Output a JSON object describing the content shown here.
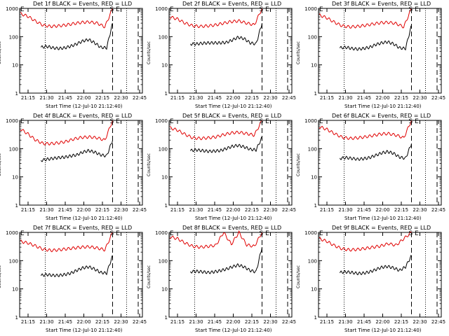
{
  "axis": {
    "ylabel": "Counts/sec",
    "xlabel": "Start Time (12-Jul-10 21:12:40)",
    "ytick_labels": [
      "1000",
      "100",
      "10",
      "1"
    ],
    "xtick_labels": [
      "21:15",
      "21:30",
      "21:45",
      "22:00",
      "22:15",
      "22:30",
      "22:45"
    ],
    "ylim": [
      1,
      1000
    ],
    "yscale": "log"
  },
  "markers": {
    "start": "E",
    "end": "S E"
  },
  "colors": {
    "events": "#000000",
    "lld": "#e00000"
  },
  "chart_data": [
    {
      "title": "Det 1f BLACK = Events, RED = LLD",
      "type": "line",
      "series": [
        {
          "name": "Events",
          "values": [
            42,
            45,
            40,
            38,
            40,
            46,
            55,
            70,
            78,
            60,
            42,
            40,
            300
          ]
        },
        {
          "name": "LLD",
          "values": [
            650,
            520,
            350,
            250,
            230,
            240,
            260,
            290,
            320,
            330,
            300,
            220,
            1000
          ]
        }
      ]
    },
    {
      "title": "Det 2f BLACK = Events, RED = LLD",
      "type": "line",
      "series": [
        {
          "name": "Events",
          "values": [
            55,
            55,
            58,
            60,
            60,
            60,
            62,
            75,
            95,
            85,
            60,
            55,
            300
          ]
        },
        {
          "name": "LLD",
          "values": [
            500,
            420,
            300,
            240,
            230,
            240,
            260,
            300,
            340,
            360,
            300,
            260,
            1000
          ]
        }
      ]
    },
    {
      "title": "Det 3f BLACK = Events, RED = LLD",
      "type": "line",
      "series": [
        {
          "name": "Events",
          "values": [
            40,
            42,
            38,
            36,
            38,
            42,
            52,
            60,
            65,
            55,
            40,
            38,
            250
          ]
        },
        {
          "name": "LLD",
          "values": [
            580,
            460,
            320,
            240,
            220,
            230,
            250,
            280,
            310,
            320,
            290,
            220,
            1000
          ]
        }
      ]
    },
    {
      "title": "Det 4f BLACK = Events, RED = LLD",
      "type": "line",
      "series": [
        {
          "name": "Events",
          "values": [
            38,
            42,
            45,
            48,
            50,
            55,
            60,
            75,
            85,
            75,
            60,
            55,
            200
          ]
        },
        {
          "name": "LLD",
          "values": [
            500,
            330,
            200,
            150,
            150,
            160,
            180,
            220,
            250,
            260,
            240,
            200,
            1000
          ]
        }
      ]
    },
    {
      "title": "Det 5f BLACK = Events, RED = LLD",
      "type": "line",
      "series": [
        {
          "name": "Events",
          "values": [
            85,
            90,
            85,
            80,
            82,
            85,
            100,
            120,
            130,
            115,
            95,
            90,
            250
          ]
        },
        {
          "name": "LLD",
          "values": [
            550,
            450,
            320,
            240,
            230,
            240,
            260,
            310,
            360,
            380,
            340,
            300,
            1000
          ]
        }
      ]
    },
    {
      "title": "Det 6f BLACK = Events, RED = LLD",
      "type": "line",
      "series": [
        {
          "name": "Events",
          "values": [
            45,
            48,
            45,
            42,
            44,
            48,
            58,
            70,
            78,
            68,
            50,
            45,
            150
          ]
        },
        {
          "name": "LLD",
          "values": [
            600,
            480,
            340,
            250,
            230,
            240,
            260,
            290,
            330,
            340,
            300,
            240,
            1000
          ]
        }
      ]
    },
    {
      "title": "Det 7f BLACK = Events, RED = LLD",
      "type": "line",
      "series": [
        {
          "name": "Events",
          "values": [
            30,
            32,
            30,
            30,
            32,
            36,
            45,
            55,
            60,
            50,
            38,
            36,
            150
          ]
        },
        {
          "name": "LLD",
          "values": [
            480,
            420,
            330,
            250,
            230,
            240,
            260,
            280,
            300,
            310,
            280,
            240,
            1000
          ]
        }
      ]
    },
    {
      "title": "Det 8f BLACK = Events, RED = LLD",
      "type": "line",
      "series": [
        {
          "name": "Events",
          "values": [
            40,
            42,
            40,
            38,
            40,
            44,
            50,
            60,
            70,
            60,
            45,
            40,
            300
          ]
        },
        {
          "name": "LLD",
          "values": [
            700,
            600,
            420,
            320,
            300,
            320,
            350,
            1000,
            380,
            1000,
            360,
            320,
            1000
          ]
        }
      ]
    },
    {
      "title": "Det 9f BLACK = Events, RED = LLD",
      "type": "line",
      "series": [
        {
          "name": "Events",
          "values": [
            38,
            40,
            38,
            35,
            36,
            40,
            48,
            58,
            62,
            55,
            45,
            60,
            150
          ]
        },
        {
          "name": "LLD",
          "values": [
            600,
            480,
            340,
            260,
            240,
            250,
            270,
            300,
            330,
            400,
            350,
            600,
            1000
          ]
        }
      ]
    }
  ]
}
